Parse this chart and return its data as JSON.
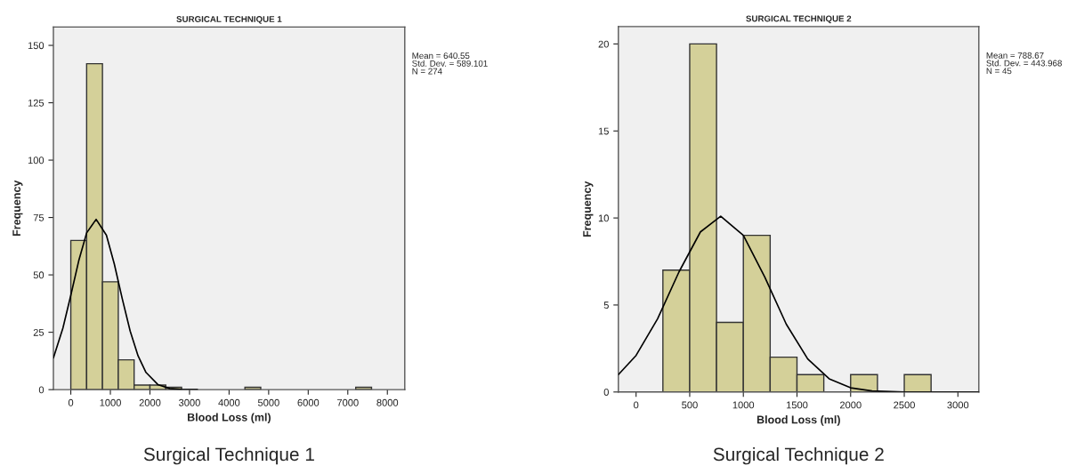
{
  "chart_data": [
    {
      "type": "histogram",
      "title": "SURGICAL TECHNIQUE 1",
      "xlabel": "Blood Loss (ml)",
      "ylabel": "Frequency",
      "bins": [
        0,
        400,
        800,
        1200,
        1600,
        2000,
        2400,
        2800,
        3200,
        3600,
        4000,
        4400,
        4800,
        5200,
        5600,
        6000,
        6400,
        6800,
        7200,
        7600
      ],
      "values": [
        65,
        142,
        47,
        13,
        2,
        2,
        1,
        0,
        0,
        0,
        0,
        1,
        0,
        0,
        0,
        0,
        0,
        0,
        1
      ],
      "color": "#d4d099",
      "series": [
        {
          "type": "line",
          "color": "#000000",
          "x": [
            -440,
            -200,
            0,
            200,
            400,
            640,
            900,
            1100,
            1300,
            1500,
            1700,
            1900,
            2200,
            2500,
            2800,
            3200
          ],
          "values": [
            13.8,
            26.8,
            41.1,
            56.1,
            68.3,
            74.2,
            67.3,
            54.7,
            39.6,
            25.5,
            14.7,
            7.5,
            2.2,
            0.5,
            0.1,
            0
          ]
        }
      ],
      "xlim": [
        -440,
        8440
      ],
      "xticks": [
        0,
        1000,
        2000,
        3000,
        4000,
        5000,
        6000,
        7000,
        8000
      ],
      "ylim": [
        0,
        158
      ],
      "yticks": [
        0,
        25,
        50,
        75,
        100,
        125,
        150
      ],
      "annotations": [
        "Mean = 640.55",
        "Std. Dev. = 589.101",
        "N = 274",
        "Surgical Technique 1"
      ]
    },
    {
      "type": "histogram",
      "title": "SURGICAL TECHNIQUE 2",
      "xlabel": "Blood Loss (ml)",
      "ylabel": "Frequency",
      "bins": [
        250,
        500,
        750,
        1000,
        1250,
        1500,
        1750,
        2000,
        2250,
        2500,
        2750
      ],
      "values": [
        7,
        20,
        4,
        9,
        2,
        1,
        0,
        1,
        0,
        1
      ],
      "color": "#d4d099",
      "series": [
        {
          "type": "line",
          "color": "#000000",
          "x": [
            -165,
            0,
            200,
            400,
            600,
            789,
            1000,
            1200,
            1400,
            1600,
            1800,
            2000,
            2200,
            2500,
            3195
          ],
          "values": [
            1.0,
            2.1,
            4.2,
            6.9,
            9.2,
            10.1,
            9.0,
            6.6,
            3.9,
            1.9,
            0.76,
            0.24,
            0.06,
            0,
            0
          ]
        }
      ],
      "xlim": [
        -165,
        3195
      ],
      "xticks": [
        0,
        500,
        1000,
        1500,
        2000,
        2500,
        3000
      ],
      "ylim": [
        0,
        21
      ],
      "yticks": [
        0,
        5,
        10,
        15,
        20
      ],
      "annotations": [
        "Mean = 788.67",
        "Std. Dev. = 443.968",
        "N = 45",
        "Surgical Technique 2"
      ]
    }
  ]
}
